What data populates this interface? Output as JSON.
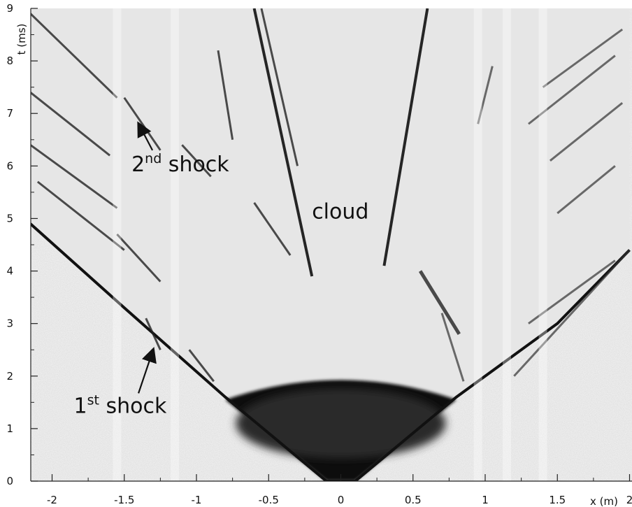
{
  "chart_data": {
    "type": "heatmap",
    "title": "",
    "xlabel": "x (m)",
    "ylabel": "t (ms)",
    "xlim": [
      -2.15,
      2.0
    ],
    "ylim": [
      0,
      9
    ],
    "grid": false,
    "x_ticks": [
      -2,
      -1.5,
      -1,
      -0.5,
      0,
      0.5,
      1,
      1.5,
      2
    ],
    "x_tick_labels": [
      "-2",
      "-1.5",
      "-1",
      "-0.5",
      "0",
      "0.5",
      "1",
      "1.5",
      "2"
    ],
    "y_ticks": [
      0,
      1,
      2,
      3,
      4,
      5,
      6,
      7,
      8,
      9
    ],
    "y_tick_labels": [
      "0",
      "1",
      "2",
      "3",
      "4",
      "5",
      "6",
      "7",
      "8",
      "9"
    ],
    "features": {
      "first_shock_front": [
        {
          "x": -2.15,
          "t": 4.9
        },
        {
          "x": -1.5,
          "t": 3.3
        },
        {
          "x": -0.8,
          "t": 1.6
        },
        {
          "x": -0.1,
          "t": 0.0
        },
        {
          "x": 0.1,
          "t": 0.0
        },
        {
          "x": 0.8,
          "t": 1.6
        },
        {
          "x": 1.5,
          "t": 3.0
        },
        {
          "x": 2.0,
          "t": 4.4
        }
      ],
      "cloud_edges": [
        {
          "x": -0.6,
          "t": 9.0
        },
        {
          "x": -0.2,
          "t": 3.9
        },
        {
          "x": 0.3,
          "t": 4.1
        },
        {
          "x": 0.6,
          "t": 9.0
        }
      ]
    },
    "annotations": [
      {
        "base": "2",
        "sup": "nd",
        "text": " shock",
        "x": -1.45,
        "t": 5.9,
        "arrow_to": {
          "x": -1.4,
          "t": 6.8
        }
      },
      {
        "base": "",
        "sup": "",
        "text": "cloud",
        "x": -0.2,
        "t": 5.0
      },
      {
        "base": "1",
        "sup": "st",
        "text": " shock",
        "x": -1.85,
        "t": 1.3,
        "arrow_to": {
          "x": -1.3,
          "t": 2.5
        }
      }
    ]
  }
}
